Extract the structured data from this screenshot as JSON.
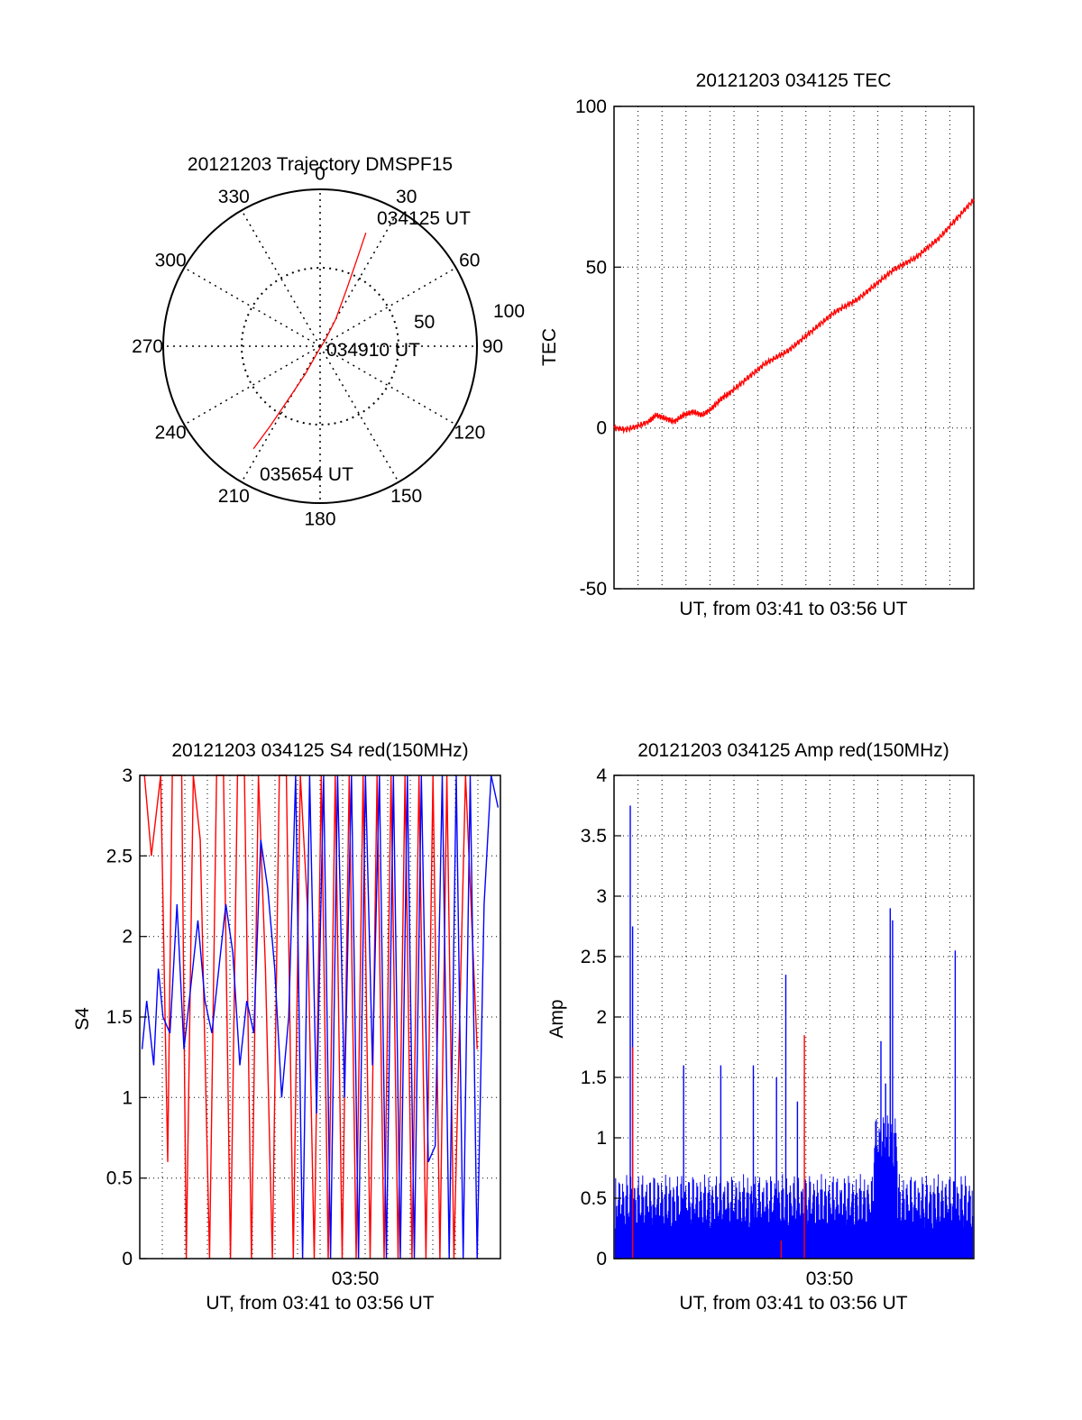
{
  "chart_data": [
    {
      "type": "polar",
      "title": "20121203 Trajectory DMSPF15",
      "azimuth_labels": [
        "0",
        "30",
        "60",
        "90",
        "120",
        "150",
        "180",
        "210",
        "240",
        "270",
        "300",
        "330"
      ],
      "radius_labels": [
        "50",
        "100"
      ],
      "r_max": 100,
      "annotations": [
        {
          "text": "034125 UT",
          "az": 22,
          "r": 78
        },
        {
          "text": "034910 UT",
          "az": 0,
          "r": 0
        },
        {
          "text": "035654 UT",
          "az": 213,
          "r": 78
        }
      ],
      "series": [
        {
          "color": "#ff0000",
          "points": [
            [
              22,
              78
            ],
            [
              23,
              60
            ],
            [
              25,
              40
            ],
            [
              30,
              20
            ],
            [
              40,
              5
            ],
            [
              200,
              3
            ],
            [
              208,
              20
            ],
            [
              211,
              40
            ],
            [
              212,
              60
            ],
            [
              213,
              78
            ]
          ]
        }
      ],
      "grid": true
    },
    {
      "type": "line",
      "title": "20121203 034125 TEC",
      "xlabel": "UT, from 03:41 to 03:56 UT",
      "ylabel": "TEC",
      "ylim": [
        -50,
        100
      ],
      "yticks": [
        "-50",
        "0",
        "50",
        "100"
      ],
      "xlim": [
        0,
        15.5
      ],
      "grid": true,
      "series": [
        {
          "color": "#ff0000",
          "x": [
            0,
            0.5,
            1.0,
            1.5,
            1.8,
            2.2,
            2.6,
            3.0,
            3.4,
            3.8,
            4.2,
            4.6,
            5.0,
            5.5,
            6.0,
            6.5,
            7.0,
            7.5,
            8.0,
            8.5,
            9.0,
            9.5,
            10.0,
            10.5,
            11.0,
            11.5,
            12.0,
            12.5,
            13.0,
            13.5,
            14.0,
            14.5,
            15.0,
            15.5
          ],
          "values": [
            0,
            -0.5,
            0.5,
            2,
            4,
            3,
            2,
            4,
            5,
            4,
            6,
            9,
            11,
            14,
            17,
            20,
            22,
            24,
            27,
            30,
            33,
            36,
            38,
            40,
            43,
            46,
            49,
            51,
            53,
            56,
            59,
            63,
            67,
            71
          ]
        }
      ]
    },
    {
      "type": "line",
      "title": "20121203 034125 S4 red(150MHz)",
      "xlabel": "UT, from 03:41 to 03:56 UT",
      "ylabel": "S4",
      "ylim": [
        0,
        3
      ],
      "yticks": [
        "0",
        "0.5",
        "1",
        "1.5",
        "2",
        "2.5",
        "3"
      ],
      "xtick_labels": [
        "03:50"
      ],
      "xlim": [
        0,
        15.5
      ],
      "grid": true,
      "series": [
        {
          "color": "#ff0000",
          "x": [
            0.2,
            0.5,
            0.9,
            1.2,
            1.4,
            1.8,
            2.0,
            2.3,
            2.6,
            3.0,
            3.3,
            3.6,
            3.9,
            4.2,
            4.5,
            4.8,
            5.1,
            5.4,
            5.7,
            6.0,
            6.3,
            6.6,
            6.9,
            7.2,
            7.5,
            7.8,
            8.1,
            8.4,
            8.7,
            9.0,
            9.3,
            9.6,
            9.9,
            10.2,
            10.5,
            10.8,
            11.1,
            11.4,
            11.7,
            12.0,
            12.3,
            12.6,
            12.9,
            13.2,
            13.5,
            14.0,
            14.5
          ],
          "values": [
            3,
            2.5,
            3,
            0.6,
            3,
            3,
            0,
            3,
            2.6,
            0,
            3,
            3,
            0,
            3,
            3,
            0,
            3,
            1.8,
            0,
            3,
            3,
            0,
            3,
            2.2,
            0,
            3,
            0,
            3,
            0,
            3,
            0,
            3,
            0,
            3,
            0,
            3,
            0,
            3,
            0,
            3,
            0,
            3,
            0,
            3,
            0,
            3,
            1.3
          ]
        },
        {
          "color": "#0000ff",
          "x": [
            0.1,
            0.3,
            0.6,
            0.8,
            1.0,
            1.3,
            1.6,
            1.9,
            2.2,
            2.5,
            2.8,
            3.1,
            3.4,
            3.7,
            4.0,
            4.3,
            4.6,
            4.9,
            5.2,
            5.5,
            5.8,
            6.1,
            6.4,
            6.7,
            7.0,
            7.3,
            7.6,
            7.9,
            8.2,
            8.5,
            8.8,
            9.1,
            9.4,
            9.7,
            10.0,
            10.3,
            10.6,
            10.9,
            11.2,
            11.5,
            11.8,
            12.1,
            12.4,
            12.7,
            13.0,
            13.3,
            13.6,
            13.9,
            14.2,
            14.5,
            14.8,
            15.1,
            15.4
          ],
          "values": [
            1.3,
            1.6,
            1.2,
            1.8,
            1.5,
            1.4,
            2.2,
            1.3,
            1.7,
            2.1,
            1.6,
            1.4,
            1.8,
            2.2,
            1.9,
            1.2,
            1.6,
            1.4,
            2.6,
            2.3,
            1.8,
            1.0,
            1.5,
            3.0,
            0.0,
            3.0,
            0.9,
            3.0,
            0.0,
            3.0,
            1.0,
            3.0,
            0.0,
            3.0,
            1.2,
            3.0,
            0.0,
            3.0,
            0.0,
            3.0,
            0.0,
            3.0,
            0.6,
            0.7,
            3.0,
            0.0,
            3.0,
            0.0,
            3.0,
            0.0,
            2.2,
            3.0,
            2.8
          ]
        }
      ]
    },
    {
      "type": "line",
      "title": "20121203 034125 Amp red(150MHz)",
      "xlabel": "UT, from 03:41 to 03:56 UT",
      "ylabel": "Amp",
      "ylim": [
        0,
        4
      ],
      "yticks": [
        "0",
        "0.5",
        "1",
        "1.5",
        "2",
        "2.5",
        "3",
        "3.5",
        "4"
      ],
      "xtick_labels": [
        "03:50"
      ],
      "xlim": [
        0,
        15.5
      ],
      "grid": true,
      "series": [
        {
          "color": "#0000ff",
          "spikes": [
            [
              0.7,
              3.75
            ],
            [
              0.8,
              2.75
            ],
            [
              3.0,
              1.6
            ],
            [
              4.6,
              1.6
            ],
            [
              6.0,
              1.6
            ],
            [
              7.0,
              1.5
            ],
            [
              7.4,
              2.35
            ],
            [
              7.9,
              1.3
            ],
            [
              11.9,
              2.9
            ],
            [
              12.0,
              2.8
            ],
            [
              14.7,
              2.55
            ],
            [
              11.5,
              1.8
            ],
            [
              11.7,
              1.45
            ]
          ]
        },
        {
          "color": "#ff0000",
          "spikes": [
            [
              0.8,
              1.75
            ],
            [
              8.2,
              1.85
            ],
            [
              7.2,
              0.15
            ]
          ]
        }
      ]
    }
  ]
}
